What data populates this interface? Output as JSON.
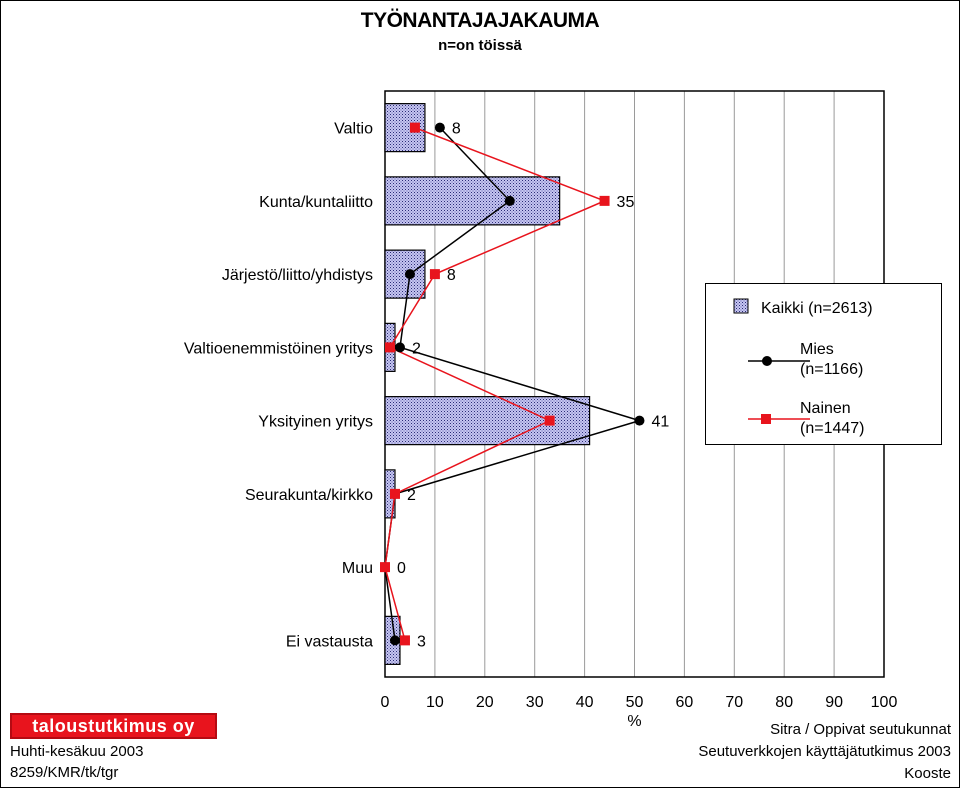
{
  "title": "TYÖNANTAJAJAKAUMA",
  "subtitle": "n=on töissä",
  "chart_data": {
    "type": "bar",
    "orientation": "horizontal",
    "categories": [
      "Valtio",
      "Kunta/kuntaliitto",
      "Järjestö/liitto/yhdistys",
      "Valtioenemmistöinen yritys",
      "Yksityinen yritys",
      "Seurakunta/kirkko",
      "Muu",
      "Ei vastausta"
    ],
    "series": [
      {
        "name": "Kaikki (n=2613)",
        "kind": "bar",
        "values": [
          8,
          35,
          8,
          2,
          41,
          2,
          0,
          3
        ],
        "color": "#9a9ae0"
      },
      {
        "name": "Mies (n=1166)",
        "kind": "line",
        "marker": "circle",
        "values": [
          11,
          25,
          5,
          3,
          51,
          2,
          0,
          2
        ],
        "color": "#000000"
      },
      {
        "name": "Nainen (n=1447)",
        "kind": "line",
        "marker": "square",
        "values": [
          6,
          44,
          10,
          1,
          33,
          2,
          0,
          4
        ],
        "color": "#e8141d"
      }
    ],
    "data_labels": [
      "8",
      "35",
      "8",
      "2",
      "41",
      "2",
      "0",
      "3"
    ],
    "xlabel": "%",
    "xlim": [
      0,
      100
    ],
    "xticks": [
      "0",
      "10",
      "20",
      "30",
      "40",
      "50",
      "60",
      "70",
      "80",
      "90",
      "100"
    ],
    "grid": "vertical",
    "legend_position": "right"
  },
  "legend": {
    "kaikki": "Kaikki (n=2613)",
    "mies_line1": "Mies",
    "mies_line2": "(n=1166)",
    "nainen_line1": "Nainen",
    "nainen_line2": "(n=1447)"
  },
  "footer": {
    "logo": "taloustutkimus oy",
    "date": "Huhti-kesäkuu 2003",
    "code": "8259/KMR/tk/tgr",
    "source1": "Sitra / Oppivat seutukunnat",
    "source2": "Seutuverkkojen käyttäjätutkimus 2003",
    "source3": "Kooste"
  }
}
